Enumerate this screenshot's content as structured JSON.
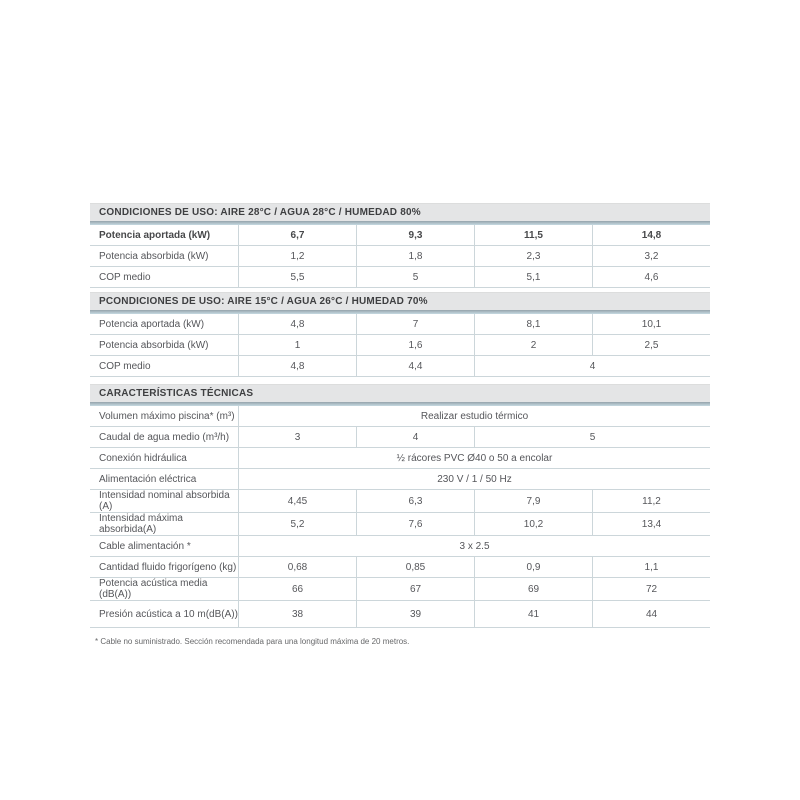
{
  "colors": {
    "section_header_bg": "#e4e5e6",
    "accent_line_top": "#95a3ab",
    "accent_line_bottom": "#c6dae2",
    "row_border": "#ccd6da",
    "text": "#55565a"
  },
  "tables": [
    {
      "header": "CONDICIONES DE USO: AIRE 28°C / AGUA 28°C / HUMEDAD 80%",
      "rows": [
        {
          "label": "Potencia aportada (kW)",
          "cells": [
            {
              "v": "6,7"
            },
            {
              "v": "9,3"
            },
            {
              "v": "11,5"
            },
            {
              "v": "14,8"
            }
          ]
        },
        {
          "label": "Potencia absorbida (kW)",
          "cells": [
            {
              "v": "1,2"
            },
            {
              "v": "1,8"
            },
            {
              "v": "2,3"
            },
            {
              "v": "3,2"
            }
          ]
        },
        {
          "label": "COP medio",
          "cells": [
            {
              "v": "5,5"
            },
            {
              "v": "5"
            },
            {
              "v": "5,1"
            },
            {
              "v": "4,6"
            }
          ]
        }
      ]
    },
    {
      "header": "PCONDICIONES DE USO: AIRE 15°C / AGUA 26°C / HUMEDAD 70%",
      "rows": [
        {
          "label": "Potencia aportada (kW)",
          "cells": [
            {
              "v": "4,8"
            },
            {
              "v": "7"
            },
            {
              "v": "8,1"
            },
            {
              "v": "10,1"
            }
          ]
        },
        {
          "label": "Potencia absorbida (kW)",
          "cells": [
            {
              "v": "1"
            },
            {
              "v": "1,6"
            },
            {
              "v": "2"
            },
            {
              "v": "2,5"
            }
          ]
        },
        {
          "label": "COP medio",
          "cells": [
            {
              "v": "4,8"
            },
            {
              "v": "4,4"
            },
            {
              "v": "4"
            }
          ]
        }
      ]
    },
    {
      "header": "CARACTERÍSTICAS TÉCNICAS",
      "rows": [
        {
          "label": "Volumen máximo piscina* (m³)",
          "cells": [
            {
              "v": "Realizar estudio térmico"
            }
          ]
        },
        {
          "label": "Caudal de agua medio (m³/h)",
          "cells": [
            {
              "v": "3"
            },
            {
              "v": "4"
            },
            {
              "v": "5"
            }
          ]
        },
        {
          "label": "Conexión hidráulica",
          "cells": [
            {
              "v": "½ rácores PVC Ø40 o 50 a encolar"
            }
          ]
        },
        {
          "label": "Alimentación eléctrica",
          "cells": [
            {
              "v": "230 V / 1 / 50 Hz"
            }
          ]
        },
        {
          "label": "Intensidad nominal absorbida (A)",
          "cells": [
            {
              "v": "4,45"
            },
            {
              "v": "6,3"
            },
            {
              "v": "7,9"
            },
            {
              "v": "11,2"
            }
          ]
        },
        {
          "label": "Intensidad máxima absorbida(A)",
          "cells": [
            {
              "v": "5,2"
            },
            {
              "v": "7,6"
            },
            {
              "v": "10,2"
            },
            {
              "v": "13,4"
            }
          ]
        },
        {
          "label": "Cable alimentación *",
          "cells": [
            {
              "v": "3 x 2.5"
            }
          ]
        },
        {
          "label": "Cantidad fluido frigorígeno (kg)",
          "cells": [
            {
              "v": "0,68"
            },
            {
              "v": "0,85"
            },
            {
              "v": "0,9"
            },
            {
              "v": "1,1"
            }
          ]
        },
        {
          "label": "Potencia acústica media (dB(A))",
          "cells": [
            {
              "v": "66"
            },
            {
              "v": "67"
            },
            {
              "v": "69"
            },
            {
              "v": "72"
            }
          ]
        },
        {
          "label": "Presión acústica a 10 m(dB(A))",
          "cells": [
            {
              "v": "38"
            },
            {
              "v": "39"
            },
            {
              "v": "41"
            },
            {
              "v": "44"
            }
          ]
        }
      ]
    }
  ],
  "footnote": "* Cable no suministrado. Sección recomendada para una longitud máxima de 20 metros."
}
